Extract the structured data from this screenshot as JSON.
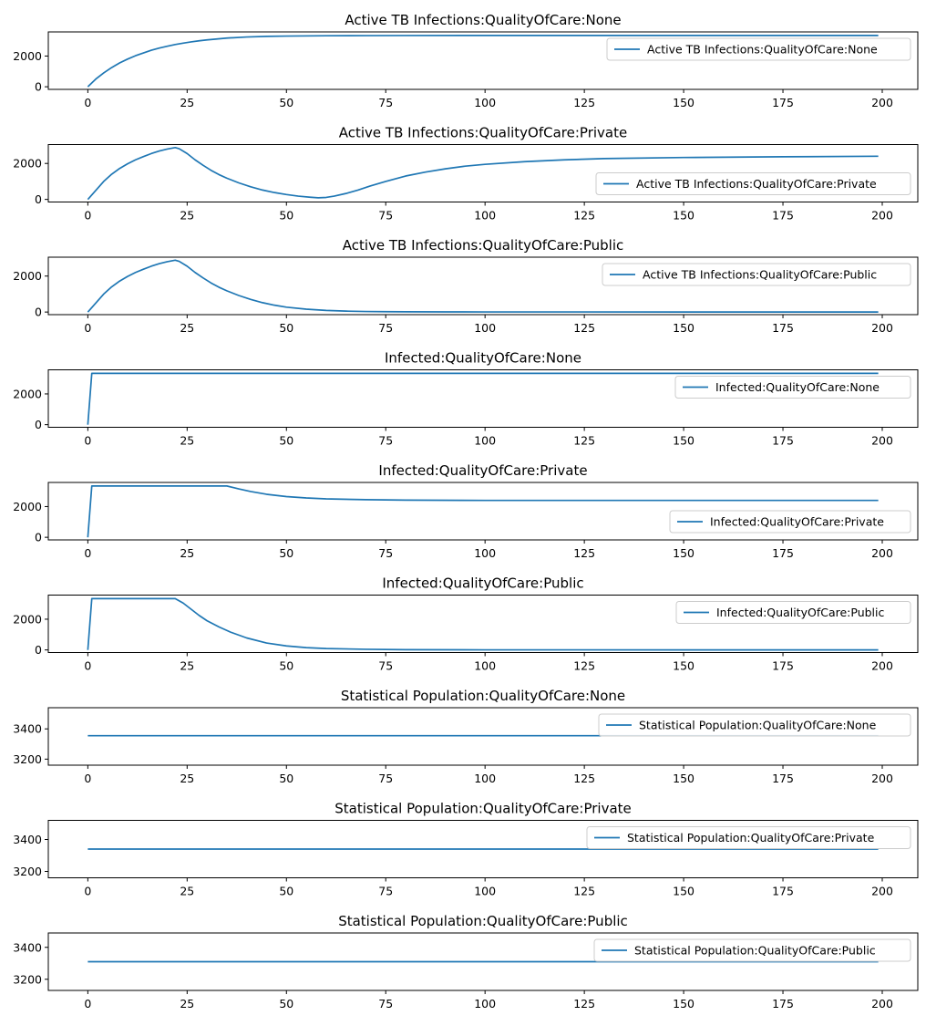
{
  "chart_data": [
    {
      "type": "line",
      "title": "Active TB Infections:QualityOfCare:None",
      "xlim": [
        -9.95,
        208.95
      ],
      "ylim": [
        -170,
        3570
      ],
      "xticks": [
        0,
        25,
        50,
        75,
        100,
        125,
        150,
        175,
        200
      ],
      "yticks": [
        0,
        2000
      ],
      "legend": "upper right",
      "series": [
        {
          "name": "Active TB Infections:QualityOfCare:None",
          "color": "#1f77b4",
          "x": [
            0,
            2,
            4,
            6,
            8,
            10,
            12,
            14,
            16,
            18,
            20,
            22,
            24,
            26,
            28,
            30,
            35,
            40,
            45,
            50,
            60,
            70,
            80,
            100,
            120,
            150,
            199
          ],
          "y": [
            0,
            500,
            900,
            1250,
            1550,
            1800,
            2020,
            2200,
            2380,
            2520,
            2640,
            2750,
            2840,
            2920,
            2990,
            3050,
            3170,
            3240,
            3280,
            3300,
            3320,
            3330,
            3335,
            3340,
            3340,
            3340,
            3340
          ]
        }
      ]
    },
    {
      "type": "line",
      "title": "Active TB Infections:QualityOfCare:Private",
      "xlim": [
        -9.95,
        208.95
      ],
      "ylim": [
        -145,
        3050
      ],
      "xticks": [
        0,
        25,
        50,
        75,
        100,
        125,
        150,
        175,
        200
      ],
      "yticks": [
        0,
        2000
      ],
      "legend": "lower right",
      "series": [
        {
          "name": "Active TB Infections:QualityOfCare:Private",
          "color": "#1f77b4",
          "x": [
            0,
            2,
            4,
            6,
            8,
            10,
            12,
            14,
            16,
            18,
            20,
            22,
            23,
            25,
            27,
            29,
            31,
            33,
            35,
            38,
            41,
            44,
            47,
            50,
            53,
            56,
            58,
            60,
            62,
            65,
            68,
            71,
            75,
            80,
            85,
            90,
            95,
            100,
            110,
            120,
            130,
            150,
            175,
            199
          ],
          "y": [
            0,
            500,
            1000,
            1400,
            1720,
            1980,
            2200,
            2380,
            2550,
            2690,
            2800,
            2880,
            2820,
            2550,
            2200,
            1900,
            1620,
            1380,
            1180,
            920,
            700,
            520,
            380,
            270,
            180,
            120,
            90,
            110,
            180,
            330,
            520,
            740,
            1000,
            1300,
            1520,
            1700,
            1850,
            1950,
            2100,
            2200,
            2270,
            2330,
            2370,
            2400
          ]
        }
      ]
    },
    {
      "type": "line",
      "title": "Active TB Infections:QualityOfCare:Public",
      "xlim": [
        -9.95,
        208.95
      ],
      "ylim": [
        -145,
        3050
      ],
      "xticks": [
        0,
        25,
        50,
        75,
        100,
        125,
        150,
        175,
        200
      ],
      "yticks": [
        0,
        2000
      ],
      "legend": "upper right",
      "series": [
        {
          "name": "Active TB Infections:QualityOfCare:Public",
          "color": "#1f77b4",
          "x": [
            0,
            2,
            4,
            6,
            8,
            10,
            12,
            14,
            16,
            18,
            20,
            22,
            23,
            25,
            27,
            29,
            31,
            33,
            35,
            38,
            41,
            44,
            47,
            50,
            55,
            60,
            65,
            70,
            75,
            80,
            90,
            100,
            120,
            150,
            199
          ],
          "y": [
            0,
            500,
            1000,
            1400,
            1720,
            1980,
            2200,
            2380,
            2550,
            2690,
            2800,
            2880,
            2820,
            2550,
            2200,
            1900,
            1620,
            1380,
            1180,
            920,
            700,
            520,
            380,
            270,
            160,
            90,
            50,
            30,
            20,
            12,
            8,
            5,
            3,
            2,
            2
          ]
        }
      ]
    },
    {
      "type": "line",
      "title": "Infected:QualityOfCare:None",
      "xlim": [
        -9.95,
        208.95
      ],
      "ylim": [
        -170,
        3570
      ],
      "xticks": [
        0,
        25,
        50,
        75,
        100,
        125,
        150,
        175,
        200
      ],
      "yticks": [
        0,
        2000
      ],
      "legend": "upper right",
      "series": [
        {
          "name": "Infected:QualityOfCare:None",
          "color": "#1f77b4",
          "x": [
            0,
            1,
            199
          ],
          "y": [
            0,
            3340,
            3340
          ]
        }
      ]
    },
    {
      "type": "line",
      "title": "Infected:QualityOfCare:Private",
      "xlim": [
        -9.95,
        208.95
      ],
      "ylim": [
        -170,
        3570
      ],
      "xticks": [
        0,
        25,
        50,
        75,
        100,
        125,
        150,
        175,
        200
      ],
      "yticks": [
        0,
        2000
      ],
      "legend": "lower right",
      "series": [
        {
          "name": "Infected:QualityOfCare:Private",
          "color": "#1f77b4",
          "x": [
            0,
            1,
            35,
            38,
            41,
            45,
            50,
            55,
            60,
            70,
            80,
            100,
            150,
            199
          ],
          "y": [
            0,
            3340,
            3340,
            3150,
            2980,
            2800,
            2650,
            2560,
            2500,
            2450,
            2420,
            2400,
            2400,
            2400
          ]
        }
      ]
    },
    {
      "type": "line",
      "title": "Infected:QualityOfCare:Public",
      "xlim": [
        -9.95,
        208.95
      ],
      "ylim": [
        -170,
        3570
      ],
      "xticks": [
        0,
        25,
        50,
        75,
        100,
        125,
        150,
        175,
        200
      ],
      "yticks": [
        0,
        2000
      ],
      "legend": "upper right",
      "series": [
        {
          "name": "Infected:QualityOfCare:Public",
          "color": "#1f77b4",
          "x": [
            0,
            1,
            22,
            24,
            26,
            28,
            30,
            33,
            36,
            40,
            45,
            50,
            55,
            60,
            70,
            80,
            100,
            150,
            199
          ],
          "y": [
            0,
            3340,
            3340,
            3050,
            2650,
            2250,
            1900,
            1500,
            1150,
            780,
            450,
            260,
            150,
            90,
            40,
            15,
            5,
            2,
            2
          ]
        }
      ]
    },
    {
      "type": "line",
      "title": "Statistical Population:QualityOfCare:None",
      "xlim": [
        -9.95,
        208.95
      ],
      "ylim": [
        3160,
        3540
      ],
      "xticks": [
        0,
        25,
        50,
        75,
        100,
        125,
        150,
        175,
        200
      ],
      "yticks": [
        3200,
        3400
      ],
      "legend": "upper right",
      "series": [
        {
          "name": "Statistical Population:QualityOfCare:None",
          "color": "#1f77b4",
          "x": [
            0,
            199
          ],
          "y": [
            3355,
            3355
          ]
        }
      ]
    },
    {
      "type": "line",
      "title": "Statistical Population:QualityOfCare:Private",
      "xlim": [
        -9.95,
        208.95
      ],
      "ylim": [
        3160,
        3520
      ],
      "xticks": [
        0,
        25,
        50,
        75,
        100,
        125,
        150,
        175,
        200
      ],
      "yticks": [
        3200,
        3400
      ],
      "legend": "upper right",
      "series": [
        {
          "name": "Statistical Population:QualityOfCare:Private",
          "color": "#1f77b4",
          "x": [
            0,
            199
          ],
          "y": [
            3340,
            3340
          ]
        }
      ]
    },
    {
      "type": "line",
      "title": "Statistical Population:QualityOfCare:Public",
      "xlim": [
        -9.95,
        208.95
      ],
      "ylim": [
        3130,
        3490
      ],
      "xticks": [
        0,
        25,
        50,
        75,
        100,
        125,
        150,
        175,
        200
      ],
      "yticks": [
        3200,
        3400
      ],
      "legend": "upper right",
      "series": [
        {
          "name": "Statistical Population:QualityOfCare:Public",
          "color": "#1f77b4",
          "x": [
            0,
            199
          ],
          "y": [
            3310,
            3310
          ]
        }
      ]
    }
  ]
}
